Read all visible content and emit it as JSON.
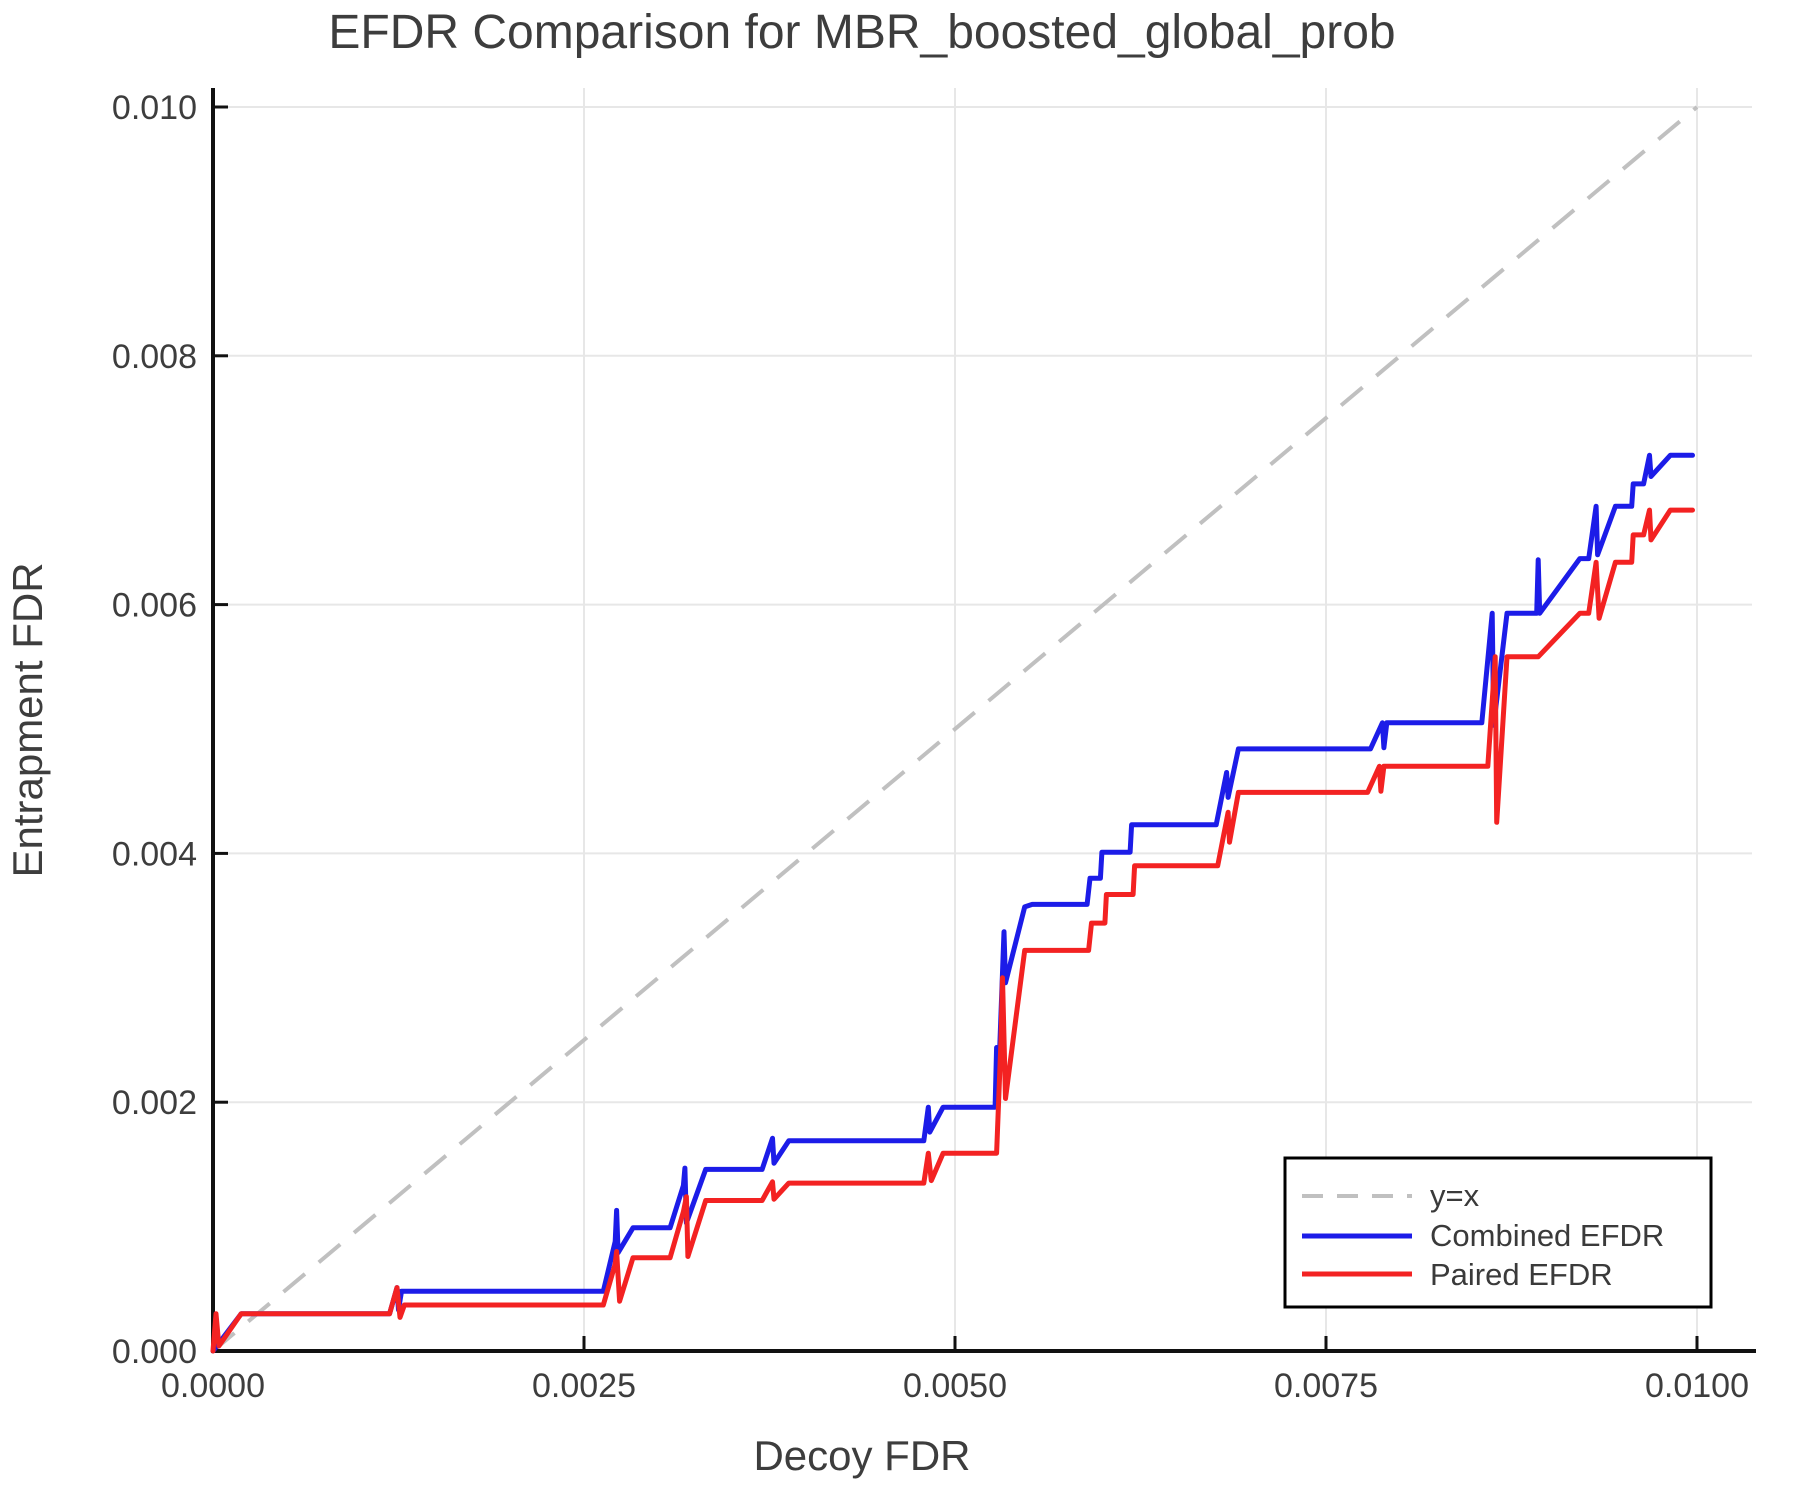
{
  "title": "EFDR Comparison for MBR_boosted_global_prob",
  "axes": {
    "xlabel": "Decoy FDR",
    "ylabel": "Entrapment FDR",
    "x_tick_labels": [
      "0.0000",
      "0.0025",
      "0.0050",
      "0.0075",
      "0.0100"
    ],
    "x_tick_values": [
      0,
      0.0025,
      0.005,
      0.0075,
      0.01
    ],
    "y_tick_labels": [
      "0.000",
      "0.002",
      "0.004",
      "0.006",
      "0.008",
      "0.010"
    ],
    "y_tick_values": [
      0,
      0.002,
      0.004,
      0.006,
      0.008,
      0.01
    ],
    "grid": true,
    "axis_color": "#111111",
    "grid_color": "#e7e7e7"
  },
  "legend": {
    "position": "lower right",
    "items": [
      {
        "label": "y=x",
        "color": "#c0c0c0",
        "dashed": true
      },
      {
        "label": "Combined EFDR",
        "color": "#1c1ce8",
        "dashed": false
      },
      {
        "label": "Paired EFDR",
        "color": "#f32222",
        "dashed": false
      }
    ]
  },
  "chart_data": {
    "type": "line",
    "title": "EFDR Comparison for MBR_boosted_global_prob",
    "xlabel": "Decoy FDR",
    "ylabel": "Entrapment FDR",
    "xlim": [
      0,
      0.0105
    ],
    "ylim": [
      0,
      0.0101
    ],
    "legend_position": "lower right",
    "grid": true,
    "series": [
      {
        "name": "y=x",
        "color": "#c0c0c0",
        "style": "dashed",
        "points": [
          [
            0,
            0
          ],
          [
            0.01,
            0.01
          ]
        ]
      },
      {
        "name": "Combined EFDR",
        "color": "#1c1ce8",
        "style": "solid",
        "points": [
          [
            0.0,
            0.0
          ],
          [
            0.00019,
            0.0003
          ],
          [
            0.00119,
            0.0003
          ],
          [
            0.00124,
            0.00051
          ],
          [
            0.00125,
            0.00033
          ],
          [
            0.00127,
            0.00048
          ],
          [
            0.00263,
            0.00048
          ],
          [
            0.00271,
            0.00088
          ],
          [
            0.00272,
            0.00113
          ],
          [
            0.00273,
            0.00079
          ],
          [
            0.00283,
            0.00099
          ],
          [
            0.00308,
            0.00099
          ],
          [
            0.00317,
            0.00133
          ],
          [
            0.00318,
            0.00147
          ],
          [
            0.00319,
            0.00103
          ],
          [
            0.00332,
            0.00146
          ],
          [
            0.0037,
            0.00146
          ],
          [
            0.00377,
            0.00171
          ],
          [
            0.00378,
            0.00151
          ],
          [
            0.00388,
            0.00169
          ],
          [
            0.00479,
            0.00169
          ],
          [
            0.00482,
            0.00196
          ],
          [
            0.00483,
            0.00176
          ],
          [
            0.00492,
            0.00196
          ],
          [
            0.00527,
            0.00196
          ],
          [
            0.00528,
            0.00244
          ],
          [
            0.00529,
            0.00206
          ],
          [
            0.00533,
            0.00337
          ],
          [
            0.00534,
            0.00296
          ],
          [
            0.00547,
            0.00357
          ],
          [
            0.00552,
            0.00359
          ],
          [
            0.00589,
            0.00359
          ],
          [
            0.00591,
            0.0038
          ],
          [
            0.00598,
            0.0038
          ],
          [
            0.00599,
            0.00401
          ],
          [
            0.00618,
            0.00401
          ],
          [
            0.00619,
            0.00423
          ],
          [
            0.00676,
            0.00423
          ],
          [
            0.00683,
            0.00465
          ],
          [
            0.00684,
            0.00445
          ],
          [
            0.00691,
            0.00484
          ],
          [
            0.0078,
            0.00484
          ],
          [
            0.00788,
            0.00505
          ],
          [
            0.00789,
            0.00485
          ],
          [
            0.00791,
            0.00505
          ],
          [
            0.00855,
            0.00505
          ],
          [
            0.00862,
            0.00593
          ],
          [
            0.00863,
            0.00503
          ],
          [
            0.00872,
            0.00593
          ],
          [
            0.00892,
            0.00593
          ],
          [
            0.00893,
            0.00636
          ],
          [
            0.00894,
            0.00593
          ],
          [
            0.00921,
            0.00637
          ],
          [
            0.00927,
            0.00637
          ],
          [
            0.00932,
            0.00679
          ],
          [
            0.00933,
            0.0064
          ],
          [
            0.00945,
            0.00679
          ],
          [
            0.00956,
            0.00679
          ],
          [
            0.00957,
            0.00697
          ],
          [
            0.00964,
            0.00697
          ],
          [
            0.00968,
            0.0072
          ],
          [
            0.00969,
            0.00703
          ],
          [
            0.00982,
            0.0072
          ],
          [
            0.00997,
            0.0072
          ]
        ]
      },
      {
        "name": "Paired EFDR",
        "color": "#f32222",
        "style": "solid",
        "points": [
          [
            0.0,
            0.0
          ],
          [
            2e-05,
            0.0003
          ],
          [
            4e-05,
            4e-05
          ],
          [
            0.00019,
            0.0003
          ],
          [
            0.00119,
            0.0003
          ],
          [
            0.00124,
            0.00051
          ],
          [
            0.00126,
            0.00027
          ],
          [
            0.00129,
            0.00037
          ],
          [
            0.00263,
            0.00037
          ],
          [
            0.00271,
            0.0007
          ],
          [
            0.00272,
            0.0008
          ],
          [
            0.00274,
            0.0004
          ],
          [
            0.00283,
            0.00075
          ],
          [
            0.00308,
            0.00075
          ],
          [
            0.00317,
            0.00112
          ],
          [
            0.00319,
            0.00124
          ],
          [
            0.0032,
            0.00076
          ],
          [
            0.00332,
            0.00121
          ],
          [
            0.0037,
            0.00121
          ],
          [
            0.00377,
            0.00136
          ],
          [
            0.00378,
            0.00122
          ],
          [
            0.00388,
            0.00135
          ],
          [
            0.00479,
            0.00135
          ],
          [
            0.00482,
            0.00159
          ],
          [
            0.00484,
            0.00137
          ],
          [
            0.00492,
            0.00159
          ],
          [
            0.00528,
            0.00159
          ],
          [
            0.00531,
            0.0025
          ],
          [
            0.00532,
            0.003
          ],
          [
            0.00534,
            0.00203
          ],
          [
            0.00547,
            0.00322
          ],
          [
            0.00552,
            0.00322
          ],
          [
            0.0059,
            0.00322
          ],
          [
            0.00592,
            0.00344
          ],
          [
            0.00601,
            0.00344
          ],
          [
            0.00602,
            0.00367
          ],
          [
            0.0062,
            0.00367
          ],
          [
            0.00621,
            0.0039
          ],
          [
            0.00677,
            0.0039
          ],
          [
            0.00684,
            0.00433
          ],
          [
            0.00685,
            0.00409
          ],
          [
            0.00691,
            0.00449
          ],
          [
            0.00778,
            0.00449
          ],
          [
            0.00786,
            0.0047
          ],
          [
            0.00787,
            0.0045
          ],
          [
            0.00789,
            0.0047
          ],
          [
            0.00859,
            0.0047
          ],
          [
            0.00864,
            0.00558
          ],
          [
            0.00865,
            0.00425
          ],
          [
            0.00872,
            0.00558
          ],
          [
            0.00893,
            0.00558
          ],
          [
            0.00921,
            0.00593
          ],
          [
            0.00927,
            0.00593
          ],
          [
            0.00932,
            0.00634
          ],
          [
            0.00934,
            0.00589
          ],
          [
            0.00945,
            0.00634
          ],
          [
            0.00956,
            0.00634
          ],
          [
            0.00957,
            0.00656
          ],
          [
            0.00964,
            0.00656
          ],
          [
            0.00968,
            0.00676
          ],
          [
            0.00969,
            0.00652
          ],
          [
            0.00982,
            0.00676
          ],
          [
            0.00997,
            0.00676
          ]
        ]
      }
    ]
  }
}
